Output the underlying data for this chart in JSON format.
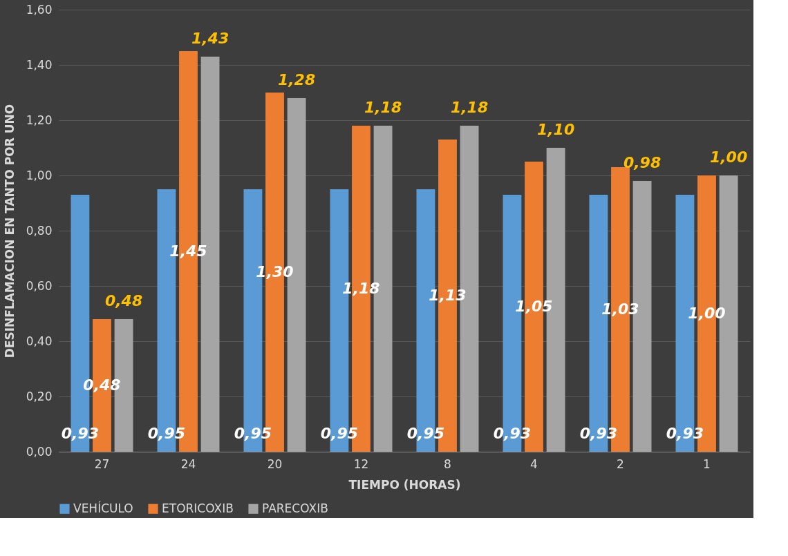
{
  "chart_data": {
    "type": "bar",
    "xlabel": "TIEMPO (HORAS)",
    "ylabel": "DESINFLAMACION EN TANTO POR UNO",
    "categories": [
      "27",
      "24",
      "20",
      "12",
      "8",
      "4",
      "2",
      "1"
    ],
    "series": [
      {
        "name": "VEHÍCULO",
        "color": "#5b9bd5",
        "values": [
          0.93,
          0.95,
          0.95,
          0.95,
          0.95,
          0.93,
          0.93,
          0.93
        ],
        "value_labels": [
          "0,93",
          "0,95",
          "0,95",
          "0,95",
          "0,95",
          "0,93",
          "0,93",
          "0,93"
        ]
      },
      {
        "name": "ETORICOXIB",
        "color": "#ed7d31",
        "values": [
          0.48,
          1.45,
          1.3,
          1.18,
          1.13,
          1.05,
          1.03,
          1.0
        ],
        "value_labels": [
          "0,48",
          "1,45",
          "1,30",
          "1,18",
          "1,13",
          "1,05",
          "1,03",
          "1,00"
        ]
      },
      {
        "name": "PARECOXIB",
        "color": "#a5a5a5",
        "values": [
          0.48,
          1.43,
          1.28,
          1.18,
          1.18,
          1.1,
          0.98,
          1.0
        ],
        "value_labels": [
          "0,48",
          "1,43",
          "1,28",
          "1,18",
          "1,18",
          "1,10",
          "0,98",
          "1,00"
        ]
      }
    ],
    "ylim": [
      0,
      1.6
    ],
    "yticks": [
      {
        "value": 0,
        "label": "0,00"
      },
      {
        "value": 0.2,
        "label": "0,20"
      },
      {
        "value": 0.4,
        "label": "0,40"
      },
      {
        "value": 0.6,
        "label": "0,60"
      },
      {
        "value": 0.8,
        "label": "0,80"
      },
      {
        "value": 1.0,
        "label": "1,00"
      },
      {
        "value": 1.2,
        "label": "1,20"
      },
      {
        "value": 1.4,
        "label": "1,40"
      },
      {
        "value": 1.6,
        "label": "1,60"
      }
    ],
    "grid": "y",
    "legend": "bottom"
  }
}
